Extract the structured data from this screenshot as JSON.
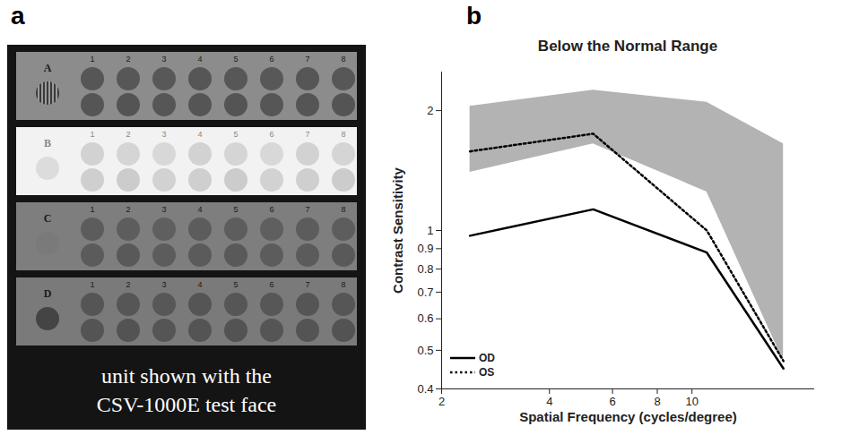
{
  "figure_a": {
    "panel_label": "a",
    "rows": [
      {
        "label": "A",
        "columns": [
          1,
          2,
          3,
          4,
          5,
          6,
          7,
          8
        ]
      },
      {
        "label": "B",
        "columns": [
          1,
          2,
          3,
          4,
          5,
          6,
          7,
          8
        ]
      },
      {
        "label": "C",
        "columns": [
          1,
          2,
          3,
          4,
          5,
          6,
          7,
          8
        ]
      },
      {
        "label": "D",
        "columns": [
          1,
          2,
          3,
          4,
          5,
          6,
          7,
          8
        ]
      }
    ],
    "caption_lines": [
      "unit shown with the",
      "CSV-1000E test face"
    ]
  },
  "chart_data": {
    "panel_label": "b",
    "type": "line",
    "title": "Below the Normal Range",
    "x_label": "Spatial Frequency (cycles/degree)",
    "y_label": "Contrast Sensitivity",
    "log": true,
    "grid": false,
    "xlim": [
      2,
      22
    ],
    "xticks": [
      2,
      4,
      6,
      8,
      10
    ],
    "ylim": [
      0.4,
      2.5
    ],
    "yticks": [
      0.4,
      0.5,
      0.6,
      0.7,
      0.8,
      0.9,
      1,
      2
    ],
    "x": [
      2.4,
      5.3,
      11,
      18
    ],
    "series": [
      {
        "name": "OD",
        "color": "#000000",
        "line_style": "solid",
        "values": [
          0.97,
          1.13,
          0.88,
          0.45
        ]
      },
      {
        "name": "OS",
        "color": "#000000",
        "line_style": "dotted",
        "values": [
          1.58,
          1.75,
          1.0,
          0.47
        ]
      }
    ],
    "normal_range": {
      "x": [
        2.4,
        5.3,
        11,
        18
      ],
      "lower": [
        1.4,
        1.65,
        1.25,
        0.47
      ],
      "upper": [
        2.05,
        2.25,
        2.1,
        1.65
      ],
      "color": "#b3b3b3"
    },
    "legend": "lower left"
  }
}
